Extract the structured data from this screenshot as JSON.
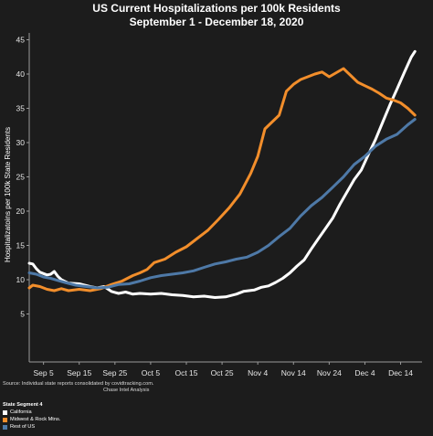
{
  "chart_data": {
    "type": "line",
    "title": "US Current Hospitalizations per 100k Residents",
    "subtitle": "September 1 - December 18, 2020",
    "ylabel": "Hospitalizatoins per 100k State Residents",
    "xlabel": "",
    "ylim": [
      -2,
      46
    ],
    "yticks": [
      5,
      10,
      15,
      20,
      25,
      30,
      35,
      40,
      45
    ],
    "x_range": [
      "2020-09-01",
      "2020-12-20"
    ],
    "xticks": [
      {
        "date": "2020-09-05",
        "label": "Sep 5"
      },
      {
        "date": "2020-09-15",
        "label": "Sep 15"
      },
      {
        "date": "2020-09-25",
        "label": "Sep 25"
      },
      {
        "date": "2020-10-05",
        "label": "Oct 5"
      },
      {
        "date": "2020-10-15",
        "label": "Oct 15"
      },
      {
        "date": "2020-10-25",
        "label": "Oct 25"
      },
      {
        "date": "2020-11-04",
        "label": "Nov 4"
      },
      {
        "date": "2020-11-14",
        "label": "Nov 14"
      },
      {
        "date": "2020-11-24",
        "label": "Nov 24"
      },
      {
        "date": "2020-12-04",
        "label": "Dec 4"
      },
      {
        "date": "2020-12-14",
        "label": "Dec 14"
      }
    ],
    "grid": false,
    "series": [
      {
        "name": "California",
        "color": "#ffffff",
        "points": [
          [
            "2020-09-01",
            12.4
          ],
          [
            "2020-09-02",
            12.3
          ],
          [
            "2020-09-03",
            11.6
          ],
          [
            "2020-09-04",
            11.1
          ],
          [
            "2020-09-05",
            10.9
          ],
          [
            "2020-09-06",
            10.7
          ],
          [
            "2020-09-07",
            10.8
          ],
          [
            "2020-09-08",
            11.2
          ],
          [
            "2020-09-09",
            10.5
          ],
          [
            "2020-09-10",
            10.0
          ],
          [
            "2020-09-12",
            9.5
          ],
          [
            "2020-09-15",
            9.4
          ],
          [
            "2020-09-18",
            9.0
          ],
          [
            "2020-09-20",
            8.8
          ],
          [
            "2020-09-22",
            9.0
          ],
          [
            "2020-09-24",
            8.3
          ],
          [
            "2020-09-26",
            8.0
          ],
          [
            "2020-09-28",
            8.2
          ],
          [
            "2020-09-30",
            7.9
          ],
          [
            "2020-10-02",
            8.0
          ],
          [
            "2020-10-05",
            7.9
          ],
          [
            "2020-10-08",
            8.0
          ],
          [
            "2020-10-11",
            7.8
          ],
          [
            "2020-10-14",
            7.7
          ],
          [
            "2020-10-17",
            7.5
          ],
          [
            "2020-10-20",
            7.6
          ],
          [
            "2020-10-23",
            7.4
          ],
          [
            "2020-10-26",
            7.5
          ],
          [
            "2020-10-29",
            7.9
          ],
          [
            "2020-10-31",
            8.3
          ],
          [
            "2020-11-03",
            8.5
          ],
          [
            "2020-11-05",
            8.9
          ],
          [
            "2020-11-07",
            9.1
          ],
          [
            "2020-11-09",
            9.6
          ],
          [
            "2020-11-11",
            10.2
          ],
          [
            "2020-11-13",
            11.0
          ],
          [
            "2020-11-15",
            12.0
          ],
          [
            "2020-11-17",
            12.9
          ],
          [
            "2020-11-19",
            14.5
          ],
          [
            "2020-11-21",
            16.0
          ],
          [
            "2020-11-23",
            17.5
          ],
          [
            "2020-11-25",
            19.0
          ],
          [
            "2020-11-27",
            21.0
          ],
          [
            "2020-11-29",
            22.8
          ],
          [
            "2020-12-01",
            24.6
          ],
          [
            "2020-12-03",
            26.0
          ],
          [
            "2020-12-05",
            28.3
          ],
          [
            "2020-12-07",
            30.5
          ],
          [
            "2020-12-09",
            33.0
          ],
          [
            "2020-12-11",
            35.5
          ],
          [
            "2020-12-13",
            37.8
          ],
          [
            "2020-12-15",
            40.2
          ],
          [
            "2020-12-17",
            42.5
          ],
          [
            "2020-12-18",
            43.3
          ]
        ]
      },
      {
        "name": "Midwest & Rock Mtns.",
        "color": "#f28e2b",
        "points": [
          [
            "2020-09-01",
            8.8
          ],
          [
            "2020-09-02",
            9.2
          ],
          [
            "2020-09-04",
            9.0
          ],
          [
            "2020-09-06",
            8.6
          ],
          [
            "2020-09-08",
            8.4
          ],
          [
            "2020-09-10",
            8.7
          ],
          [
            "2020-09-12",
            8.4
          ],
          [
            "2020-09-15",
            8.6
          ],
          [
            "2020-09-18",
            8.4
          ],
          [
            "2020-09-21",
            8.7
          ],
          [
            "2020-09-24",
            9.3
          ],
          [
            "2020-09-27",
            9.8
          ],
          [
            "2020-09-30",
            10.6
          ],
          [
            "2020-10-02",
            11.0
          ],
          [
            "2020-10-04",
            11.5
          ],
          [
            "2020-10-06",
            12.5
          ],
          [
            "2020-10-09",
            13.0
          ],
          [
            "2020-10-12",
            14.0
          ],
          [
            "2020-10-15",
            14.8
          ],
          [
            "2020-10-18",
            16.0
          ],
          [
            "2020-10-21",
            17.2
          ],
          [
            "2020-10-24",
            18.8
          ],
          [
            "2020-10-27",
            20.5
          ],
          [
            "2020-10-30",
            22.5
          ],
          [
            "2020-11-02",
            25.5
          ],
          [
            "2020-11-04",
            28.0
          ],
          [
            "2020-11-06",
            32.0
          ],
          [
            "2020-11-08",
            33.0
          ],
          [
            "2020-11-10",
            34.0
          ],
          [
            "2020-11-12",
            37.5
          ],
          [
            "2020-11-14",
            38.5
          ],
          [
            "2020-11-16",
            39.2
          ],
          [
            "2020-11-18",
            39.6
          ],
          [
            "2020-11-20",
            40.0
          ],
          [
            "2020-11-22",
            40.3
          ],
          [
            "2020-11-24",
            39.6
          ],
          [
            "2020-11-26",
            40.2
          ],
          [
            "2020-11-28",
            40.8
          ],
          [
            "2020-11-30",
            39.8
          ],
          [
            "2020-12-02",
            38.8
          ],
          [
            "2020-12-04",
            38.3
          ],
          [
            "2020-12-06",
            37.8
          ],
          [
            "2020-12-08",
            37.2
          ],
          [
            "2020-12-10",
            36.5
          ],
          [
            "2020-12-12",
            36.2
          ],
          [
            "2020-12-14",
            35.8
          ],
          [
            "2020-12-16",
            35.0
          ],
          [
            "2020-12-18",
            34.0
          ]
        ]
      },
      {
        "name": "Rest of US",
        "color": "#4e79a7",
        "points": [
          [
            "2020-09-01",
            11.0
          ],
          [
            "2020-09-03",
            10.8
          ],
          [
            "2020-09-05",
            10.4
          ],
          [
            "2020-09-07",
            10.2
          ],
          [
            "2020-09-09",
            9.9
          ],
          [
            "2020-09-11",
            9.6
          ],
          [
            "2020-09-14",
            9.2
          ],
          [
            "2020-09-17",
            9.0
          ],
          [
            "2020-09-20",
            8.8
          ],
          [
            "2020-09-23",
            8.9
          ],
          [
            "2020-09-26",
            9.3
          ],
          [
            "2020-09-29",
            9.4
          ],
          [
            "2020-10-02",
            9.8
          ],
          [
            "2020-10-05",
            10.3
          ],
          [
            "2020-10-08",
            10.6
          ],
          [
            "2020-10-11",
            10.8
          ],
          [
            "2020-10-14",
            11.0
          ],
          [
            "2020-10-17",
            11.3
          ],
          [
            "2020-10-20",
            11.8
          ],
          [
            "2020-10-23",
            12.3
          ],
          [
            "2020-10-26",
            12.6
          ],
          [
            "2020-10-29",
            13.0
          ],
          [
            "2020-11-01",
            13.3
          ],
          [
            "2020-11-04",
            14.0
          ],
          [
            "2020-11-07",
            15.0
          ],
          [
            "2020-11-10",
            16.3
          ],
          [
            "2020-11-13",
            17.5
          ],
          [
            "2020-11-16",
            19.3
          ],
          [
            "2020-11-19",
            20.8
          ],
          [
            "2020-11-22",
            22.0
          ],
          [
            "2020-11-25",
            23.5
          ],
          [
            "2020-11-28",
            25.0
          ],
          [
            "2020-12-01",
            26.8
          ],
          [
            "2020-12-04",
            28.0
          ],
          [
            "2020-12-07",
            29.5
          ],
          [
            "2020-12-10",
            30.5
          ],
          [
            "2020-12-13",
            31.2
          ],
          [
            "2020-12-16",
            32.6
          ],
          [
            "2020-12-18",
            33.4
          ]
        ]
      }
    ]
  },
  "source": {
    "line1": "Source: Individual state reports consolidated by covidtracking.com.",
    "line2": "Chase Intel Analysis"
  },
  "legend": {
    "title": "State Segment 4",
    "items": [
      {
        "label": "California",
        "color": "#ffffff"
      },
      {
        "label": "Midwest & Rock Mtns.",
        "color": "#f28e2b"
      },
      {
        "label": "Rest of US",
        "color": "#4e79a7"
      }
    ]
  }
}
